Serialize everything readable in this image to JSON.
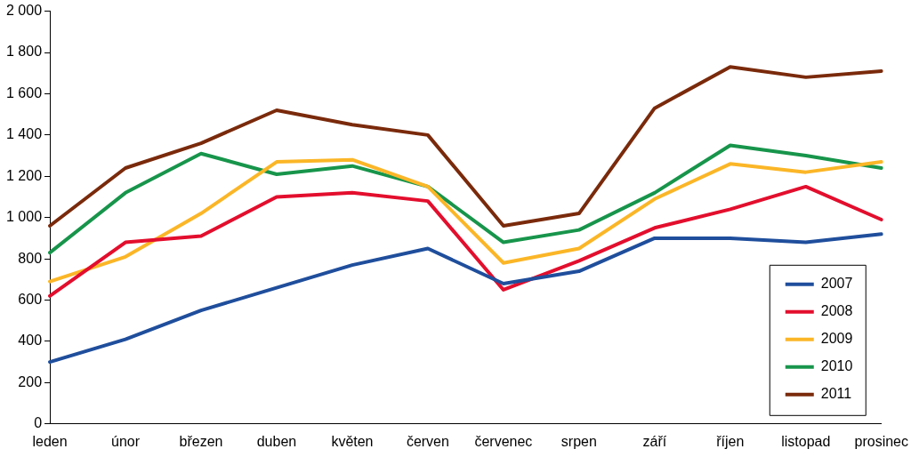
{
  "chart_data": {
    "type": "line",
    "categories": [
      "leden",
      "únor",
      "březen",
      "duben",
      "květen",
      "červen",
      "červenec",
      "srpen",
      "září",
      "říjen",
      "listopad",
      "prosinec"
    ],
    "series": [
      {
        "name": "2007",
        "color": "#1f4e9c",
        "values": [
          300,
          410,
          550,
          660,
          770,
          850,
          680,
          740,
          900,
          900,
          880,
          920
        ]
      },
      {
        "name": "2008",
        "color": "#e30e2d",
        "values": [
          620,
          880,
          910,
          1100,
          1120,
          1080,
          650,
          790,
          950,
          1040,
          1150,
          990
        ]
      },
      {
        "name": "2009",
        "color": "#fbb627",
        "values": [
          690,
          810,
          1020,
          1270,
          1280,
          1150,
          780,
          850,
          1090,
          1260,
          1220,
          1270
        ]
      },
      {
        "name": "2010",
        "color": "#17954b",
        "values": [
          830,
          1120,
          1310,
          1210,
          1250,
          1150,
          880,
          940,
          1120,
          1350,
          1300,
          1240
        ]
      },
      {
        "name": "2011",
        "color": "#7a2a0b",
        "values": [
          960,
          1240,
          1360,
          1520,
          1450,
          1400,
          960,
          1020,
          1530,
          1730,
          1680,
          1710
        ]
      }
    ],
    "ylim": [
      0,
      2000
    ],
    "yticks": [
      0,
      200,
      400,
      600,
      800,
      {
        "value": 1000,
        "label": "1 000"
      },
      {
        "value": 1200,
        "label": "1 200"
      },
      {
        "value": 1400,
        "label": "1 400"
      },
      {
        "value": 1600,
        "label": "1 600"
      },
      {
        "value": 1800,
        "label": "1 800"
      },
      {
        "value": 2000,
        "label": "2 000"
      }
    ],
    "grid": false,
    "legend": "bottom right",
    "marker": "none",
    "line_style": "solid"
  }
}
